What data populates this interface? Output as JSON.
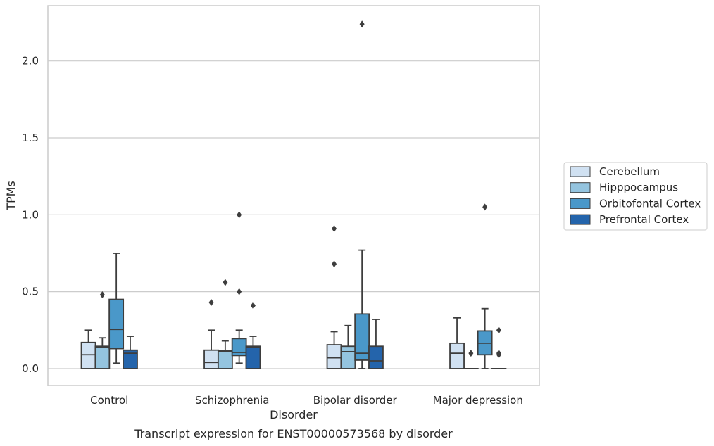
{
  "chart_data": {
    "type": "box",
    "title": "",
    "caption": "Transcript expression for ENST00000573568 by disorder",
    "xlabel": "Disorder",
    "ylabel": "TPMs",
    "ylim": [
      -0.11,
      2.36
    ],
    "yticks": [
      "0.0",
      "0.5",
      "1.0",
      "1.5",
      "2.0"
    ],
    "grid": "horizontal",
    "legend_position": "right",
    "categories": [
      "Control",
      "Schizophrenia",
      "Bipolar disorder",
      "Major depression"
    ],
    "series": [
      {
        "name": "Cerebellum",
        "color": "#d0e1f2",
        "boxes": [
          {
            "q1": 0.0,
            "median": 0.09,
            "q3": 0.17,
            "wlo": 0.0,
            "whi": 0.25,
            "outliers": []
          },
          {
            "q1": 0.0,
            "median": 0.04,
            "q3": 0.12,
            "wlo": 0.0,
            "whi": 0.25,
            "outliers": [
              0.43
            ]
          },
          {
            "q1": 0.0,
            "median": 0.07,
            "q3": 0.155,
            "wlo": 0.0,
            "whi": 0.24,
            "outliers": [
              0.68,
              0.91
            ]
          },
          {
            "q1": 0.0,
            "median": 0.1,
            "q3": 0.165,
            "wlo": 0.0,
            "whi": 0.33,
            "outliers": []
          }
        ]
      },
      {
        "name": "Hipppocampus",
        "color": "#94c4df",
        "boxes": [
          {
            "q1": 0.0,
            "median": 0.14,
            "q3": 0.145,
            "wlo": 0.0,
            "whi": 0.2,
            "outliers": [
              0.48
            ]
          },
          {
            "q1": 0.0,
            "median": 0.11,
            "q3": 0.115,
            "wlo": 0.0,
            "whi": 0.18,
            "outliers": [
              0.56
            ]
          },
          {
            "q1": 0.0,
            "median": 0.11,
            "q3": 0.145,
            "wlo": 0.0,
            "whi": 0.28,
            "outliers": []
          },
          {
            "q1": 0.0,
            "median": 0.0,
            "q3": 0.0,
            "wlo": 0.0,
            "whi": 0.0,
            "outliers": [
              0.1
            ]
          }
        ]
      },
      {
        "name": "Orbitofontal Cortex",
        "color": "#4a98c9",
        "boxes": [
          {
            "q1": 0.13,
            "median": 0.255,
            "q3": 0.45,
            "wlo": 0.035,
            "whi": 0.75,
            "outliers": []
          },
          {
            "q1": 0.085,
            "median": 0.105,
            "q3": 0.195,
            "wlo": 0.035,
            "whi": 0.25,
            "outliers": [
              0.5,
              1.0
            ]
          },
          {
            "q1": 0.055,
            "median": 0.1,
            "q3": 0.355,
            "wlo": 0.0,
            "whi": 0.77,
            "outliers": [
              2.24
            ]
          },
          {
            "q1": 0.09,
            "median": 0.165,
            "q3": 0.245,
            "wlo": 0.0,
            "whi": 0.39,
            "outliers": [
              1.05
            ]
          }
        ]
      },
      {
        "name": "Prefrontal Cortex",
        "color": "#2464ab",
        "boxes": [
          {
            "q1": 0.0,
            "median": 0.1,
            "q3": 0.12,
            "wlo": 0.0,
            "whi": 0.21,
            "outliers": []
          },
          {
            "q1": 0.0,
            "median": 0.14,
            "q3": 0.145,
            "wlo": 0.0,
            "whi": 0.21,
            "outliers": [
              0.41
            ]
          },
          {
            "q1": 0.0,
            "median": 0.05,
            "q3": 0.145,
            "wlo": 0.0,
            "whi": 0.32,
            "outliers": []
          },
          {
            "q1": 0.0,
            "median": 0.0,
            "q3": 0.0,
            "wlo": 0.0,
            "whi": 0.0,
            "outliers": [
              0.09,
              0.1,
              0.25
            ]
          }
        ]
      }
    ]
  }
}
